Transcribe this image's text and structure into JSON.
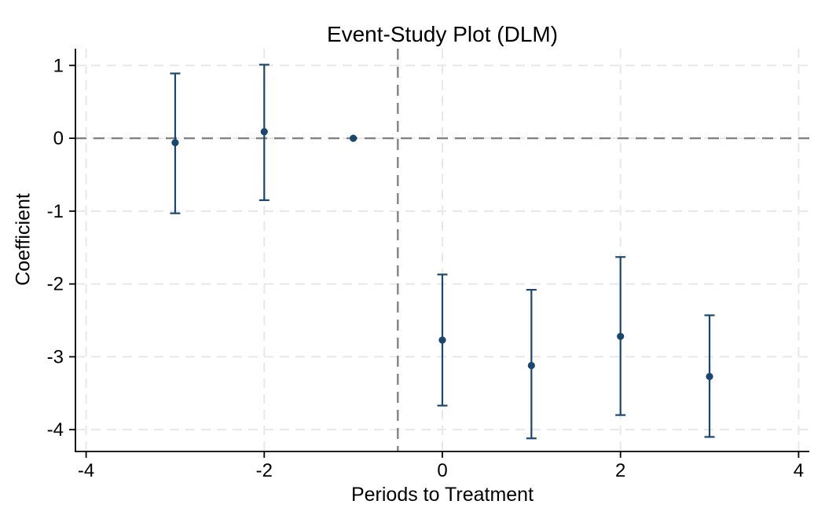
{
  "chart_data": {
    "type": "scatter",
    "title": "Event-Study Plot (DLM)",
    "xlabel": "Periods to Treatment",
    "ylabel": "Coefficient",
    "xlim": [
      -4.12,
      4.12
    ],
    "ylim": [
      -4.3,
      1.23
    ],
    "xticks": [
      -4,
      -2,
      0,
      2,
      4
    ],
    "yticks": [
      1,
      0,
      -1,
      -2,
      -3,
      -4
    ],
    "grid": "both-axes-light-dashed",
    "legend": "none",
    "reference_lines": {
      "hline_y": 0,
      "vline_x": -0.5
    },
    "series": [
      {
        "name": "event-study-coefficients",
        "x": [
          -3,
          -2,
          -1,
          0,
          1,
          2,
          3
        ],
        "y": [
          -0.06,
          0.09,
          0,
          -2.77,
          -3.12,
          -2.72,
          -3.27
        ],
        "ci_low": [
          -1.03,
          -0.85,
          null,
          -3.67,
          -4.12,
          -3.8,
          -4.1
        ],
        "ci_high": [
          0.89,
          1.01,
          null,
          -1.87,
          -2.08,
          -1.63,
          -2.43
        ],
        "note": "point at x=-1 is the reference period with no confidence interval"
      }
    ],
    "colors": {
      "point": "#1a476f",
      "error_bar": "#1a476f",
      "reference_line": "#828282",
      "grid": "#e8e8e8",
      "axis": "#000000",
      "background": "#ffffff"
    }
  }
}
